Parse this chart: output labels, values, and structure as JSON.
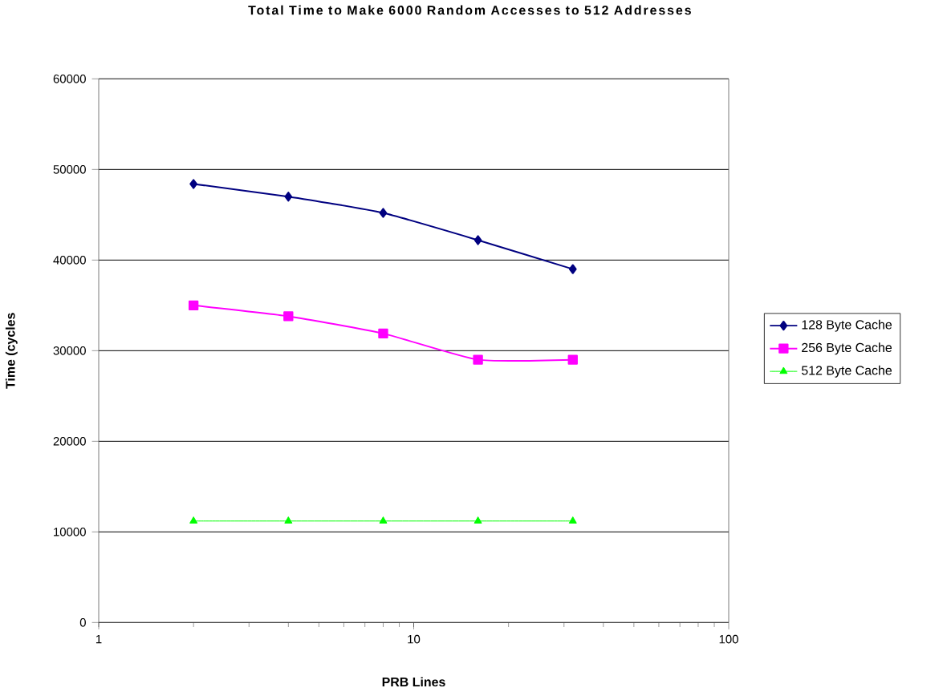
{
  "chart_data": {
    "type": "line",
    "title": "Total Time to Make 6000 Random Accesses to 512 Addresses",
    "xlabel": "PRB Lines",
    "ylabel": "Time (cycles",
    "log": "x",
    "x": [
      2,
      4,
      8,
      16,
      32
    ],
    "xlim": [
      1,
      100
    ],
    "xticks": [
      1,
      10,
      100
    ],
    "ylim": [
      0,
      60000
    ],
    "yticks": [
      0,
      10000,
      20000,
      30000,
      40000,
      50000,
      60000
    ],
    "grid": "y",
    "legend": "right",
    "series": [
      {
        "name": "128 Byte Cache",
        "color": "#000080",
        "marker": "diamond",
        "values": [
          48400,
          47000,
          45200,
          42200,
          39000
        ]
      },
      {
        "name": "256 Byte Cache",
        "color": "#ff00ff",
        "marker": "square",
        "values": [
          35000,
          33800,
          31900,
          29000,
          29000
        ]
      },
      {
        "name": "512 Byte Cache",
        "color": "#00ff00",
        "marker": "triangle",
        "values": [
          11200,
          11200,
          11200,
          11200,
          11200
        ]
      }
    ]
  }
}
